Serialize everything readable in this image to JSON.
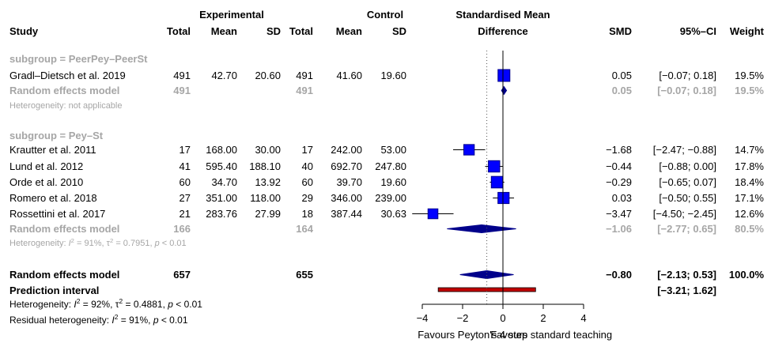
{
  "chart_data": {
    "type": "forest",
    "headers": {
      "study": "Study",
      "experimental": "Experimental",
      "control": "Control",
      "total": "Total",
      "mean": "Mean",
      "sd": "SD",
      "smd_title_line1": "Standardised Mean",
      "smd_title_line2": "Difference",
      "smd": "SMD",
      "ci": "95%–CI",
      "weight": "Weight"
    },
    "subgroups": [
      {
        "label": "subgroup = PeerPey–PeerSt",
        "studies": [
          {
            "study": "Gradl–Dietsch et al. 2019",
            "exp_total": "491",
            "exp_mean": "42.70",
            "exp_sd": "20.60",
            "ctrl_total": "491",
            "ctrl_mean": "41.60",
            "ctrl_sd": "19.60",
            "smd": 0.05,
            "ci_low": -0.07,
            "ci_high": 0.18,
            "smd_text": "0.05",
            "ci_text": "[−0.07;  0.18]",
            "weight": "19.5%"
          }
        ],
        "random_effects": {
          "label": "Random effects model",
          "exp_total": "491",
          "ctrl_total": "491",
          "smd": 0.05,
          "ci_low": -0.07,
          "ci_high": 0.18,
          "smd_text": "0.05",
          "ci_text": "[−0.07;  0.18]",
          "weight": "19.5%"
        },
        "heterogeneity": "Heterogeneity: not applicable"
      },
      {
        "label": "subgroup = Pey–St",
        "studies": [
          {
            "study": "Krautter et al. 2011",
            "exp_total": "17",
            "exp_mean": "168.00",
            "exp_sd": "30.00",
            "ctrl_total": "17",
            "ctrl_mean": "242.00",
            "ctrl_sd": "53.00",
            "smd": -1.68,
            "ci_low": -2.47,
            "ci_high": -0.88,
            "smd_text": "−1.68",
            "ci_text": "[−2.47; −0.88]",
            "weight": "14.7%"
          },
          {
            "study": "Lund et al. 2012",
            "exp_total": "41",
            "exp_mean": "595.40",
            "exp_sd": "188.10",
            "ctrl_total": "40",
            "ctrl_mean": "692.70",
            "ctrl_sd": "247.80",
            "smd": -0.44,
            "ci_low": -0.88,
            "ci_high": 0.0,
            "smd_text": "−0.44",
            "ci_text": "[−0.88;  0.00]",
            "weight": "17.8%"
          },
          {
            "study": "Orde et al. 2010",
            "exp_total": "60",
            "exp_mean": "34.70",
            "exp_sd": "13.92",
            "ctrl_total": "60",
            "ctrl_mean": "39.70",
            "ctrl_sd": "19.60",
            "smd": -0.29,
            "ci_low": -0.65,
            "ci_high": 0.07,
            "smd_text": "−0.29",
            "ci_text": "[−0.65;  0.07]",
            "weight": "18.4%"
          },
          {
            "study": "Romero et al. 2018",
            "exp_total": "27",
            "exp_mean": "351.00",
            "exp_sd": "118.00",
            "ctrl_total": "29",
            "ctrl_mean": "346.00",
            "ctrl_sd": "239.00",
            "smd": 0.03,
            "ci_low": -0.5,
            "ci_high": 0.55,
            "smd_text": "0.03",
            "ci_text": "[−0.50;  0.55]",
            "weight": "17.1%"
          },
          {
            "study": "Rossettini et al. 2017",
            "exp_total": "21",
            "exp_mean": "283.76",
            "exp_sd": "27.99",
            "ctrl_total": "18",
            "ctrl_mean": "387.44",
            "ctrl_sd": "30.63",
            "smd": -3.47,
            "ci_low": -4.5,
            "ci_high": -2.45,
            "smd_text": "−3.47",
            "ci_text": "[−4.50; −2.45]",
            "weight": "12.6%"
          }
        ],
        "random_effects": {
          "label": "Random effects model",
          "exp_total": "166",
          "ctrl_total": "164",
          "smd": -1.06,
          "ci_low": -2.77,
          "ci_high": 0.65,
          "smd_text": "−1.06",
          "ci_text": "[−2.77;  0.65]",
          "weight": "80.5%"
        },
        "heterogeneity": {
          "prefix": "Heterogeneity: ",
          "i2_label": "I",
          "i2_value": " = 91%, ",
          "tau2_label": "τ",
          "tau2_value": " = 0.7951, ",
          "p_label": "p",
          "p_value": " < 0.01"
        }
      }
    ],
    "overall": {
      "label": "Random effects model",
      "exp_total": "657",
      "ctrl_total": "655",
      "smd": -0.8,
      "ci_low": -2.13,
      "ci_high": 0.53,
      "smd_text": "−0.80",
      "ci_text": "[−2.13;  0.53]",
      "weight": "100.0%"
    },
    "prediction_interval": {
      "label": "Prediction interval",
      "ci_low": -3.21,
      "ci_high": 1.62,
      "ci_text": "[−3.21;  1.62]"
    },
    "overall_heterogeneity": {
      "prefix": "Heterogeneity: ",
      "i2_label": "I",
      "i2_value": " = 92%, ",
      "tau2_label": "τ",
      "tau2_value": " = 0.4881, ",
      "p_label": "p",
      "p_value": " < 0.01"
    },
    "residual_heterogeneity": {
      "prefix": "Residual heterogeneity: ",
      "i2_label": "I",
      "i2_value": " = 91%, ",
      "p_label": "p",
      "p_value": " < 0.01"
    },
    "x_axis": {
      "ticks": [
        -4,
        -2,
        0,
        2,
        4
      ],
      "tick_labels": [
        "−4",
        "−2",
        "0",
        "2",
        "4"
      ],
      "xlim": [
        -4,
        4
      ]
    },
    "favours_left": "Favours Peyton's 4 step",
    "favours_right": "Favours standard teaching",
    "colors": {
      "square": "#0000ff",
      "square_border": "#00008b",
      "diamond": "#00008b",
      "subgroup_text": "#a6a6a6",
      "prediction_bar": "#c00000",
      "reference_line": "#000000"
    }
  }
}
